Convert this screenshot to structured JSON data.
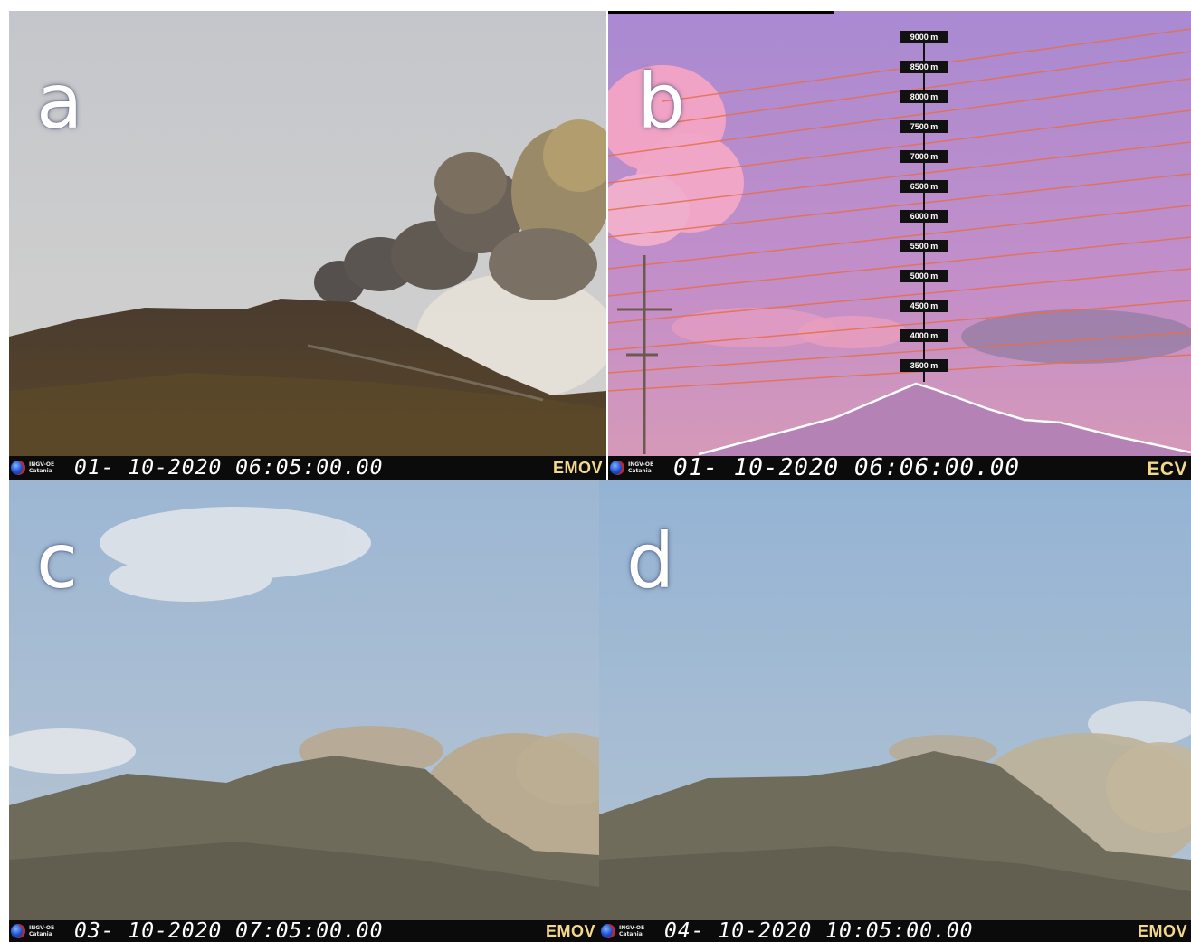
{
  "panels": {
    "a": {
      "letter": "a",
      "timestamp": "01- 10-2020 06:05:00.00",
      "camera": "EMOV"
    },
    "b": {
      "letter": "b",
      "timestamp": "01- 10-2020 06:06:00.00",
      "camera": "ECV",
      "altitude_scale": [
        "9000 m",
        "8500 m",
        "8000 m",
        "7500 m",
        "7000 m",
        "6500 m",
        "6000 m",
        "5500 m",
        "5000 m",
        "4500 m",
        "4000 m",
        "3500 m"
      ]
    },
    "c": {
      "letter": "c",
      "timestamp": "03- 10-2020 07:05:00.00",
      "camera": "EMOV"
    },
    "d": {
      "letter": "d",
      "timestamp": "04- 10-2020 10:05:00.00",
      "camera": "EMOV"
    }
  },
  "logo_text": "INGV-OE Catania",
  "colors": {
    "sky_a": "#c9cbcf",
    "sky_b": "#b48ccf",
    "sky_cd": "#9fb8d4",
    "mountain_a": "#4a3b2c",
    "mountain_cd": "#6e6a58",
    "overlay_lines": "#e0503c",
    "label_bar": "#0b0b0b"
  }
}
